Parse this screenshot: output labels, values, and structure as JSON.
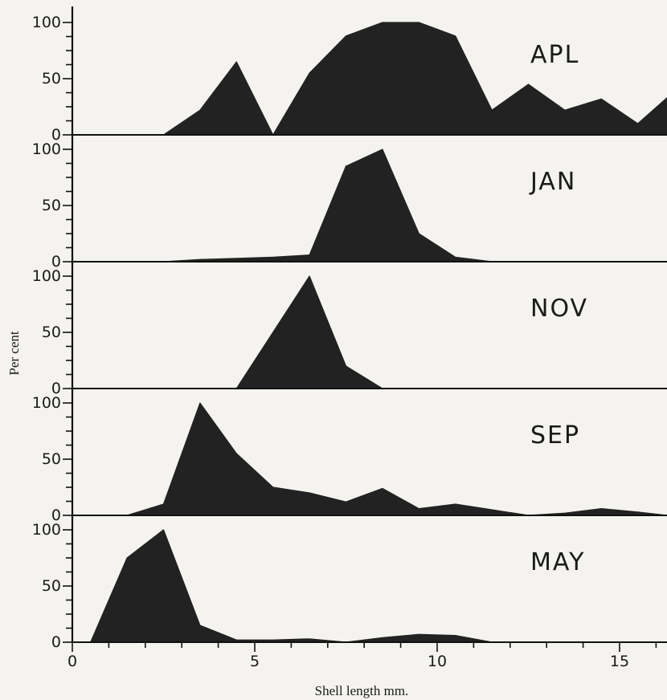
{
  "chart_data": {
    "type": "area",
    "xlabel": "Shell length mm.",
    "ylabel": "Per cent",
    "xlim": [
      0,
      16.3
    ],
    "ylim": [
      0,
      100
    ],
    "x_ticks": [
      0,
      5,
      10,
      15
    ],
    "y_ticks": [
      0,
      50,
      100
    ],
    "fill_color": "#222222",
    "panels": [
      {
        "label": "APL",
        "x": [
          2.5,
          3.5,
          4.5,
          5.5,
          6.5,
          7.5,
          8.5,
          9.5,
          10.5,
          11.5,
          12.5,
          13.5,
          14.5,
          15.5,
          16.3
        ],
        "y": [
          0,
          22,
          65,
          0,
          55,
          88,
          100,
          100,
          88,
          22,
          45,
          22,
          32,
          10,
          33
        ]
      },
      {
        "label": "JAN",
        "x": [
          2.5,
          3.5,
          4.5,
          5.5,
          6.5,
          7.5,
          8.5,
          9.5,
          10.5,
          11.5
        ],
        "y": [
          0,
          2,
          3,
          4,
          6,
          85,
          100,
          25,
          4,
          0
        ]
      },
      {
        "label": "NOV",
        "x": [
          4.5,
          5.5,
          6.5,
          7.5,
          8.5
        ],
        "y": [
          0,
          50,
          100,
          20,
          0
        ]
      },
      {
        "label": "SEP",
        "x": [
          1.5,
          2.5,
          3.5,
          4.5,
          5.5,
          6.5,
          7.5,
          8.5,
          9.5,
          10.5,
          11.5,
          12.5,
          13.5,
          14.5,
          15.5,
          16.3
        ],
        "y": [
          0,
          10,
          100,
          55,
          25,
          20,
          12,
          24,
          6,
          10,
          5,
          0,
          2,
          6,
          3,
          0
        ]
      },
      {
        "label": "MAY",
        "x": [
          0.5,
          1.5,
          2.5,
          3.5,
          4.5,
          5.5,
          6.5,
          7.5,
          8.5,
          9.5,
          10.5,
          11.5
        ],
        "y": [
          0,
          75,
          100,
          15,
          2,
          2,
          3,
          0,
          4,
          7,
          6,
          0
        ]
      }
    ]
  }
}
